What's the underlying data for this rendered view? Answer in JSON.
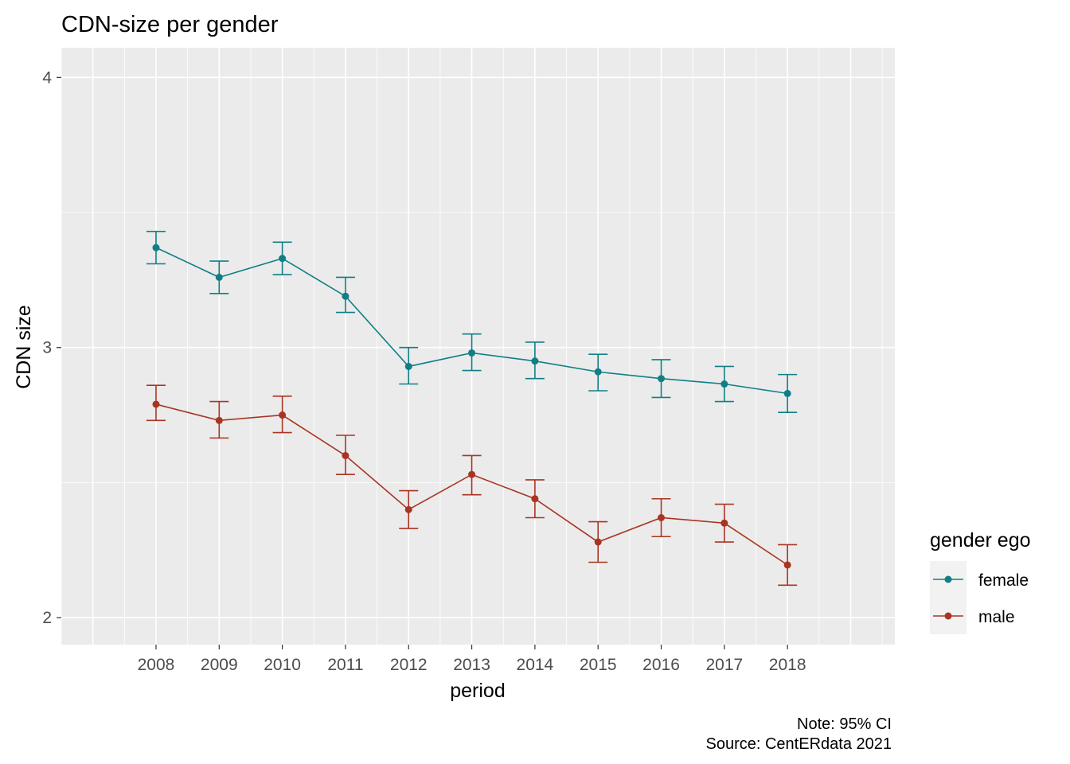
{
  "chart_data": {
    "type": "line",
    "title": "CDN-size per gender",
    "xlabel": "period",
    "ylabel": "CDN size",
    "x": [
      2008,
      2009,
      2010,
      2011,
      2012,
      2013,
      2014,
      2015,
      2016,
      2017,
      2018
    ],
    "xlim": [
      2006.5,
      2019.7
    ],
    "ylim": [
      1.9,
      4.11
    ],
    "yticks": [
      2,
      3,
      4
    ],
    "grid": true,
    "error_bars": "95% CI",
    "legend": {
      "title": "gender ego",
      "position": "right"
    },
    "series": [
      {
        "name": "female",
        "color": "#0f7f85",
        "values": [
          3.37,
          3.26,
          3.33,
          3.19,
          2.93,
          2.98,
          2.95,
          2.91,
          2.885,
          2.865,
          2.83
        ],
        "lower": [
          3.31,
          3.2,
          3.27,
          3.13,
          2.865,
          2.915,
          2.885,
          2.84,
          2.815,
          2.8,
          2.76
        ],
        "upper": [
          3.43,
          3.32,
          3.39,
          3.26,
          3.0,
          3.05,
          3.02,
          2.975,
          2.955,
          2.93,
          2.9
        ]
      },
      {
        "name": "male",
        "color": "#a93422",
        "values": [
          2.79,
          2.73,
          2.75,
          2.6,
          2.4,
          2.53,
          2.44,
          2.28,
          2.37,
          2.35,
          2.195
        ],
        "lower": [
          2.73,
          2.665,
          2.685,
          2.53,
          2.33,
          2.455,
          2.37,
          2.205,
          2.3,
          2.28,
          2.12
        ],
        "upper": [
          2.86,
          2.8,
          2.82,
          2.675,
          2.47,
          2.6,
          2.51,
          2.355,
          2.44,
          2.42,
          2.27
        ]
      }
    ],
    "caption": [
      "Note: 95% CI",
      "Source: CentERdata 2021"
    ]
  }
}
